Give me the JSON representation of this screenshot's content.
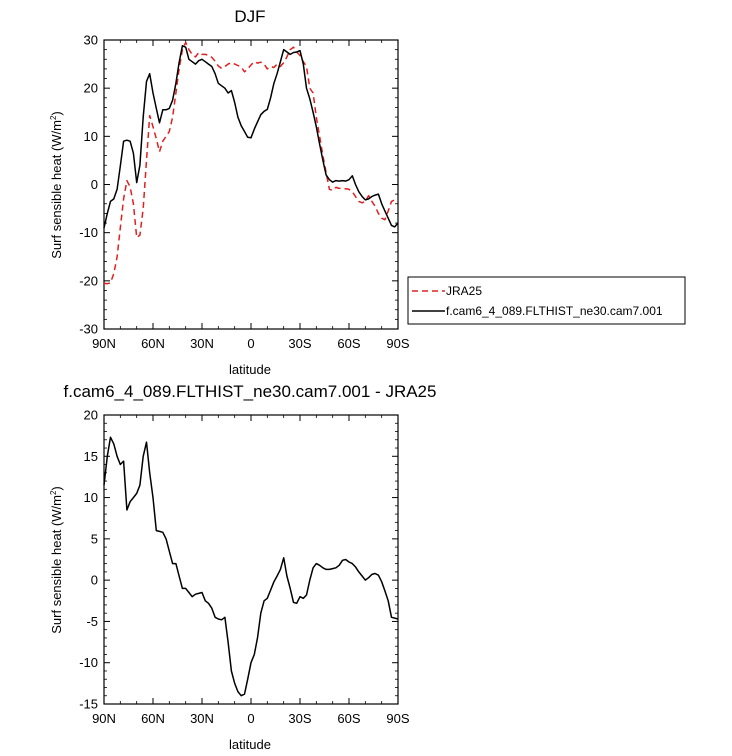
{
  "chart_data": [
    {
      "type": "line",
      "title": "DJF",
      "xlabel": "latitude",
      "ylabel": "Surf sensible heat (W/m",
      "ylabel_sup": "2",
      "ylabel_close": ")",
      "x_is_latitude_north_to_south": true,
      "xlim": [
        90,
        -90
      ],
      "ylim": [
        -30,
        30
      ],
      "xticks": [
        {
          "value": 90,
          "label": "90N"
        },
        {
          "value": 60,
          "label": "60N"
        },
        {
          "value": 30,
          "label": "30N"
        },
        {
          "value": 0,
          "label": "0"
        },
        {
          "value": -30,
          "label": "30S"
        },
        {
          "value": -60,
          "label": "60S"
        },
        {
          "value": -90,
          "label": "90S"
        }
      ],
      "yticks": [
        {
          "value": 30,
          "label": "30"
        },
        {
          "value": 20,
          "label": "20"
        },
        {
          "value": 10,
          "label": "10"
        },
        {
          "value": 0,
          "label": "0"
        },
        {
          "value": -10,
          "label": "-10"
        },
        {
          "value": -20,
          "label": "-20"
        },
        {
          "value": -30,
          "label": "-30"
        }
      ],
      "legend": {
        "placement": "right"
      },
      "series": [
        {
          "name": "JRA25",
          "color": "#e02020",
          "dash": "dashed",
          "x": [
            90,
            88,
            86,
            84,
            82,
            80,
            78,
            76,
            74,
            72,
            70,
            68,
            66,
            64,
            62,
            60,
            58,
            56,
            54,
            52,
            50,
            48,
            46,
            44,
            42,
            40,
            38,
            36,
            34,
            32,
            30,
            28,
            26,
            24,
            22,
            20,
            18,
            16,
            14,
            12,
            10,
            8,
            6,
            4,
            2,
            0,
            -2,
            -4,
            -6,
            -8,
            -10,
            -12,
            -14,
            -16,
            -18,
            -20,
            -22,
            -24,
            -26,
            -28,
            -30,
            -32,
            -34,
            -36,
            -38,
            -40,
            -42,
            -44,
            -46,
            -48,
            -50,
            -52,
            -54,
            -56,
            -58,
            -60,
            -62,
            -64,
            -66,
            -68,
            -70,
            -72,
            -74,
            -76,
            -78,
            -80,
            -82,
            -84,
            -86,
            -88,
            -90
          ],
          "y": [
            -20.5,
            -20.6,
            -20.4,
            -18.5,
            -15,
            -9,
            -3,
            0.8,
            -0.5,
            -4,
            -11,
            -10.5,
            -5,
            5,
            14.3,
            12,
            9.5,
            6.8,
            9,
            10,
            11,
            14,
            19,
            24,
            28,
            29.5,
            28,
            27,
            26.5,
            27.4,
            27,
            27,
            26.8,
            26.4,
            25.6,
            24.6,
            24.1,
            24.5,
            25,
            25.3,
            25,
            24.7,
            24.4,
            23.4,
            24,
            24.8,
            25.5,
            25.2,
            25.4,
            25,
            24,
            24.5,
            24.3,
            25,
            24.5,
            25.3,
            26.5,
            28,
            28.5,
            27.5,
            26.8,
            25.5,
            24.5,
            20,
            19,
            14,
            10,
            6,
            2.5,
            -1,
            -1.2,
            -0.6,
            -0.8,
            -0.8,
            -0.9,
            -1,
            -1.5,
            -2.5,
            -3.5,
            -3.8,
            -3.5,
            -2.3,
            -3.5,
            -4.5,
            -6,
            -7,
            -7.3,
            -5.5,
            -3.5,
            -3.2,
            -3.3
          ]
        },
        {
          "name": "f.cam6_4_089.FLTHIST_ne30.cam7.001",
          "color": "#000000",
          "dash": "solid",
          "x": [
            90,
            88,
            86,
            84,
            82,
            80,
            78,
            76,
            74,
            72,
            70,
            68,
            66,
            64,
            62,
            60,
            58,
            56,
            54,
            52,
            50,
            48,
            46,
            44,
            42,
            40,
            38,
            36,
            34,
            32,
            30,
            28,
            26,
            24,
            22,
            20,
            18,
            16,
            14,
            12,
            10,
            8,
            6,
            4,
            2,
            0,
            -2,
            -4,
            -6,
            -8,
            -10,
            -12,
            -14,
            -16,
            -18,
            -20,
            -22,
            -24,
            -26,
            -28,
            -30,
            -32,
            -34,
            -36,
            -38,
            -40,
            -42,
            -44,
            -46,
            -48,
            -50,
            -52,
            -54,
            -56,
            -58,
            -60,
            -62,
            -64,
            -66,
            -68,
            -70,
            -72,
            -74,
            -76,
            -78,
            -80,
            -82,
            -84,
            -86,
            -88,
            -90
          ],
          "y": [
            -9,
            -6,
            -3.5,
            -3,
            -1,
            3.8,
            9,
            9.2,
            9,
            6.5,
            0.4,
            4,
            14,
            21.4,
            23,
            19,
            15.8,
            12.8,
            15.5,
            15.5,
            15.8,
            17.5,
            21,
            25.3,
            28.8,
            28.5,
            26,
            25.5,
            25,
            25.7,
            26,
            25.5,
            25,
            24.5,
            23,
            21,
            20.5,
            20,
            19,
            19.5,
            17,
            14,
            12.2,
            11,
            9.8,
            9.7,
            11.5,
            13,
            14.5,
            15.2,
            15.6,
            18,
            21,
            23,
            25.5,
            28,
            27.5,
            27,
            27.4,
            27.5,
            27.8,
            25,
            20,
            17.8,
            15,
            12,
            8.4,
            5,
            2,
            1,
            0.5,
            0.8,
            0.7,
            0.8,
            0.7,
            1,
            1.8,
            0,
            -1.5,
            -2.5,
            -3.2,
            -3,
            -2.5,
            -2.2,
            -2,
            -4,
            -5.5,
            -7,
            -8.5,
            -8.8,
            -8
          ]
        }
      ]
    },
    {
      "type": "line",
      "title": "f.cam6_4_089.FLTHIST_ne30.cam7.001 - JRA25",
      "xlabel": "latitude",
      "ylabel": "Surf sensible heat (W/m",
      "ylabel_sup": "2",
      "ylabel_close": ")",
      "x_is_latitude_north_to_south": true,
      "xlim": [
        90,
        -90
      ],
      "ylim": [
        -15,
        20
      ],
      "xticks": [
        {
          "value": 90,
          "label": "90N"
        },
        {
          "value": 60,
          "label": "60N"
        },
        {
          "value": 30,
          "label": "30N"
        },
        {
          "value": 0,
          "label": "0"
        },
        {
          "value": -30,
          "label": "30S"
        },
        {
          "value": -60,
          "label": "60S"
        },
        {
          "value": -90,
          "label": "90S"
        }
      ],
      "yticks": [
        {
          "value": 20,
          "label": "20"
        },
        {
          "value": 15,
          "label": "15"
        },
        {
          "value": 10,
          "label": "10"
        },
        {
          "value": 5,
          "label": "5"
        },
        {
          "value": 0,
          "label": "0"
        },
        {
          "value": -5,
          "label": "-5"
        },
        {
          "value": -10,
          "label": "-10"
        },
        {
          "value": -15,
          "label": "-15"
        }
      ],
      "series": [
        {
          "color": "#000000",
          "dash": "solid",
          "x": [
            90,
            88,
            86,
            84,
            82,
            80,
            78,
            76,
            74,
            72,
            70,
            68,
            66,
            64,
            62,
            60,
            58,
            56,
            54,
            52,
            50,
            48,
            46,
            44,
            42,
            40,
            38,
            36,
            34,
            32,
            30,
            28,
            26,
            24,
            22,
            20,
            18,
            16,
            14,
            12,
            10,
            8,
            6,
            4,
            2,
            0,
            -2,
            -4,
            -6,
            -8,
            -10,
            -12,
            -14,
            -16,
            -18,
            -20,
            -22,
            -24,
            -26,
            -28,
            -30,
            -32,
            -34,
            -36,
            -38,
            -40,
            -42,
            -44,
            -46,
            -48,
            -50,
            -52,
            -54,
            -56,
            -58,
            -60,
            -62,
            -64,
            -66,
            -68,
            -70,
            -72,
            -74,
            -76,
            -78,
            -80,
            -82,
            -84,
            -86,
            -88,
            -90
          ],
          "y": [
            11.5,
            15,
            17.3,
            16.5,
            15,
            14,
            14.4,
            8.5,
            9.5,
            10,
            10.5,
            11.5,
            15,
            16.7,
            13,
            10,
            6,
            5.9,
            5.8,
            5,
            3.5,
            2,
            2,
            0.5,
            -1,
            -1,
            -1.5,
            -2,
            -1.7,
            -1.6,
            -1.5,
            -2.5,
            -2.8,
            -3.4,
            -4.5,
            -4.7,
            -4.8,
            -4.5,
            -7.5,
            -11,
            -12.5,
            -13.5,
            -14,
            -13.8,
            -12,
            -10,
            -9,
            -7,
            -4,
            -2.5,
            -2.2,
            -1.2,
            -0.2,
            0.5,
            1.3,
            2.7,
            0.5,
            -1,
            -2.7,
            -2.8,
            -2,
            -2.2,
            -1.8,
            0,
            1.5,
            2,
            1.8,
            1.5,
            1.3,
            1.3,
            1.4,
            1.5,
            1.8,
            2.4,
            2.5,
            2.2,
            2,
            1.6,
            1,
            0.5,
            0,
            0.3,
            0.7,
            0.8,
            0.6,
            -0.2,
            -1.3,
            -2.5,
            -4.5,
            -4.6,
            -4.7
          ]
        }
      ]
    }
  ]
}
